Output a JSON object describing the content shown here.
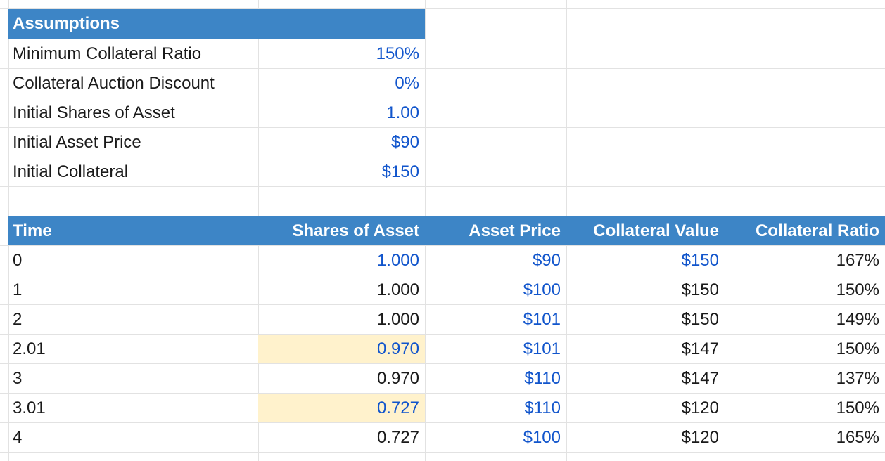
{
  "assumptions": {
    "title": "Assumptions",
    "rows": [
      {
        "label": "Minimum Collateral Ratio",
        "value": "150%"
      },
      {
        "label": "Collateral Auction Discount",
        "value": "0%"
      },
      {
        "label": "Initial Shares of Asset",
        "value": "1.00"
      },
      {
        "label": "Initial Asset Price",
        "value": "$90"
      },
      {
        "label": "Initial Collateral",
        "value": "$150"
      }
    ]
  },
  "table": {
    "headers": [
      "Time",
      "Shares of Asset",
      "Asset Price",
      "Collateral Value",
      "Collateral Ratio"
    ],
    "rows": [
      {
        "time": "0",
        "shares": "1.000",
        "price": "$90",
        "collateral_value": "$150",
        "ratio": "167%",
        "shares_input": true,
        "highlight": false,
        "value_input": true
      },
      {
        "time": "1",
        "shares": "1.000",
        "price": "$100",
        "collateral_value": "$150",
        "ratio": "150%",
        "shares_input": false,
        "highlight": false,
        "value_input": false
      },
      {
        "time": "2",
        "shares": "1.000",
        "price": "$101",
        "collateral_value": "$150",
        "ratio": "149%",
        "shares_input": false,
        "highlight": false,
        "value_input": false
      },
      {
        "time": "2.01",
        "shares": "0.970",
        "price": "$101",
        "collateral_value": "$147",
        "ratio": "150%",
        "shares_input": true,
        "highlight": true,
        "value_input": false
      },
      {
        "time": "3",
        "shares": "0.970",
        "price": "$110",
        "collateral_value": "$147",
        "ratio": "137%",
        "shares_input": false,
        "highlight": false,
        "value_input": false
      },
      {
        "time": "3.01",
        "shares": "0.727",
        "price": "$110",
        "collateral_value": "$120",
        "ratio": "150%",
        "shares_input": true,
        "highlight": true,
        "value_input": false
      },
      {
        "time": "4",
        "shares": "0.727",
        "price": "$100",
        "collateral_value": "$120",
        "ratio": "165%",
        "shares_input": false,
        "highlight": false,
        "value_input": false
      }
    ]
  },
  "colors": {
    "header_bg": "#3d85c6",
    "input_text": "#1155cc",
    "highlight_bg": "#fff2cc",
    "gridline": "#e2e2e2"
  }
}
